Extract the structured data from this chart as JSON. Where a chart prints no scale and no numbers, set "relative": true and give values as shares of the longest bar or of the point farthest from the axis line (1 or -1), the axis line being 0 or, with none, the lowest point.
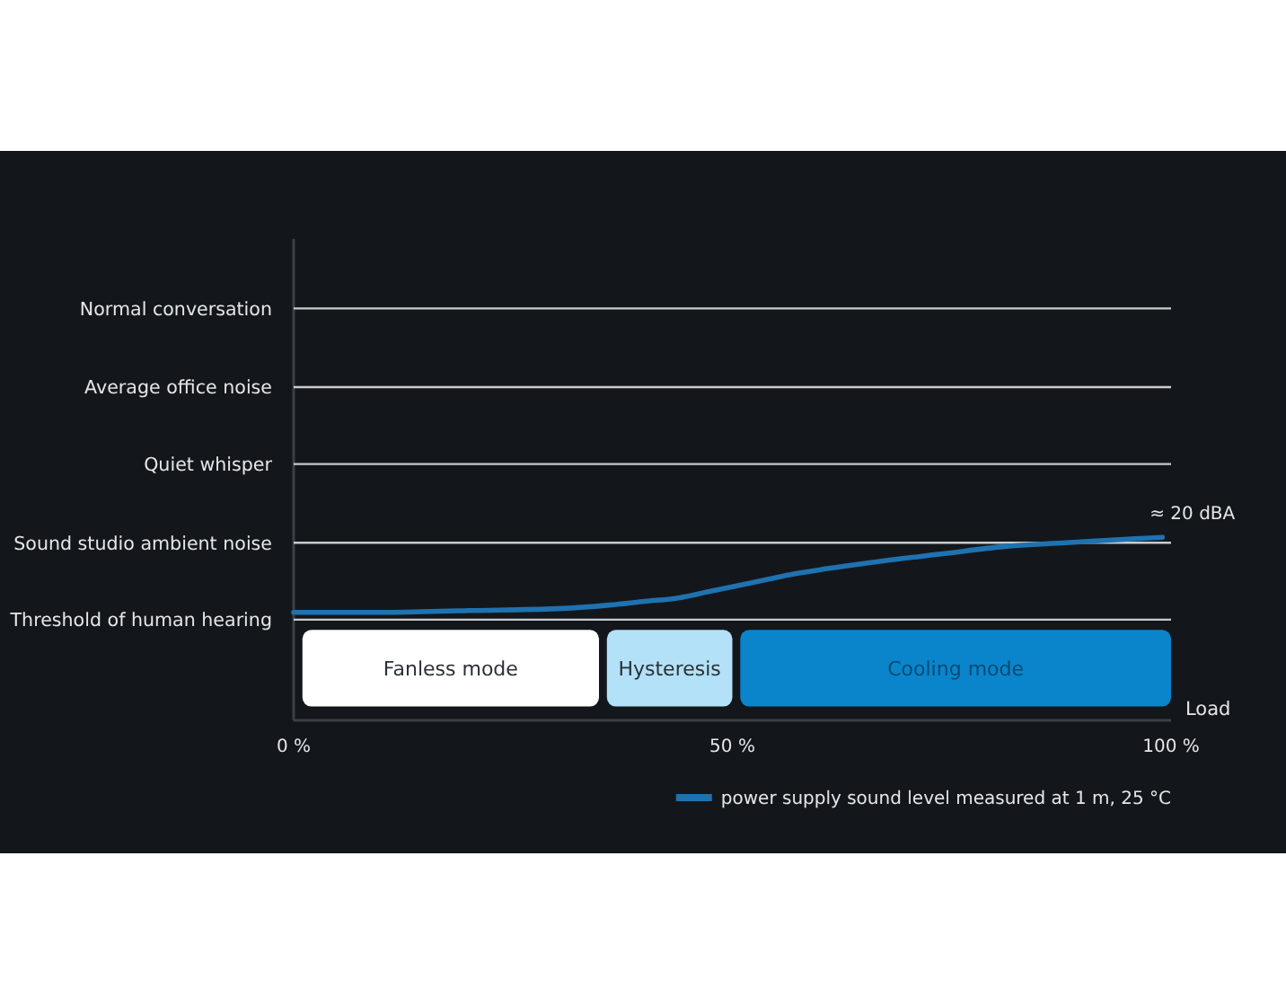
{
  "chart_data": {
    "type": "line",
    "xlabel": "Load",
    "relative": true,
    "x": [
      0,
      10,
      20,
      30,
      36,
      40,
      44,
      47,
      50,
      54,
      57,
      61,
      67,
      74,
      81,
      88,
      95,
      99
    ],
    "series": [
      {
        "name": "power supply sound level measured at 1 m, 25 °C",
        "color": "#1f72b0",
        "values": [
          0.59,
          0.59,
          0.6,
          0.61,
          0.63,
          0.65,
          0.67,
          0.7,
          0.73,
          0.77,
          0.8,
          0.83,
          0.87,
          0.91,
          0.95,
          0.97,
          0.99,
          1
        ]
      }
    ],
    "xlim": [
      0,
      100
    ],
    "xticks": [
      {
        "value": 0,
        "label": "0 %"
      },
      {
        "value": 50,
        "label": "50 %"
      },
      {
        "value": 100,
        "label": "100 %"
      }
    ],
    "ref_lines": [
      {
        "axis": "y",
        "value": 0.55,
        "label": "Threshold of human hearing",
        "color": "#c9cbcd"
      },
      {
        "axis": "y",
        "value": 0.97,
        "label": "Sound studio ambient noise",
        "color": "#c9cbcd"
      },
      {
        "axis": "y",
        "value": 1.4,
        "label": "Quiet whisper",
        "color": "#c9cbcd"
      },
      {
        "axis": "y",
        "value": 1.82,
        "label": "Average office noise",
        "color": "#c9cbcd"
      },
      {
        "axis": "y",
        "value": 2.25,
        "label": "Normal conversation",
        "color": "#c9cbcd"
      }
    ],
    "legend": "bottom right",
    "bands": [
      {
        "axis": "x",
        "from": 1,
        "to": 34.8,
        "label": "Fanless mode",
        "color": "#ffffff"
      },
      {
        "axis": "x",
        "from": 35.7,
        "to": 50,
        "label": "Hysteresis",
        "color": "#b3e1f7"
      },
      {
        "axis": "x",
        "from": 50.9,
        "to": 100,
        "label": "Cooling mode",
        "color": "#0a85cc"
      }
    ],
    "annotations": [
      {
        "text": "≈ 20 dBA",
        "x": 99,
        "y": 1
      }
    ]
  }
}
